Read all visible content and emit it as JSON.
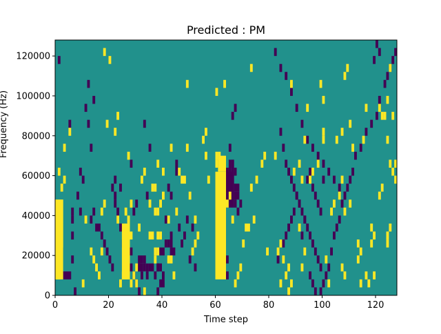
{
  "chart_data": {
    "type": "heatmap",
    "title": "Predicted : PM",
    "xlabel": "Time step",
    "ylabel": "Frequency (Hz)",
    "xlim": [
      0,
      128
    ],
    "ylim": [
      0,
      128000
    ],
    "x_ticks": [
      0,
      20,
      40,
      60,
      80,
      100,
      120
    ],
    "y_ticks": [
      0,
      20000,
      40000,
      60000,
      80000,
      100000,
      120000
    ],
    "x_tick_labels": [
      "0",
      "20",
      "40",
      "60",
      "80",
      "100",
      "120"
    ],
    "y_tick_labels": [
      "0",
      "20000",
      "40000",
      "60000",
      "80000",
      "100000",
      "120000"
    ],
    "grid": false,
    "colormap": "viridis",
    "colors": {
      "background": "#21918c",
      "low": "#440154",
      "high": "#fde725"
    },
    "n_time_steps": 128,
    "n_freq_bins": 32,
    "bin_height_hz": 4000,
    "cells_high": [
      [
        0,
        2
      ],
      [
        1,
        2
      ],
      [
        0,
        11
      ],
      [
        1,
        11
      ],
      [
        2,
        11
      ],
      [
        0,
        10
      ],
      [
        1,
        10
      ],
      [
        2,
        10
      ],
      [
        1,
        8
      ],
      [
        2,
        8
      ],
      [
        1,
        7
      ],
      [
        2,
        7
      ],
      [
        2,
        6
      ],
      [
        1,
        6
      ],
      [
        2,
        9
      ],
      [
        1,
        15
      ],
      [
        2,
        13
      ],
      [
        3,
        14
      ],
      [
        3,
        18
      ],
      [
        5,
        20
      ],
      [
        26,
        2
      ],
      [
        27,
        2
      ],
      [
        26,
        3
      ],
      [
        27,
        3
      ],
      [
        26,
        4
      ],
      [
        27,
        4
      ],
      [
        26,
        5
      ],
      [
        26,
        6
      ],
      [
        26,
        7
      ],
      [
        27,
        6
      ],
      [
        27,
        7
      ],
      [
        28,
        7
      ],
      [
        27,
        8
      ],
      [
        27,
        9
      ],
      [
        28,
        11
      ],
      [
        27,
        17
      ],
      [
        19,
        21
      ],
      [
        20,
        29
      ],
      [
        18,
        30
      ],
      [
        22,
        20
      ],
      [
        23,
        22
      ],
      [
        35,
        7
      ],
      [
        36,
        7
      ],
      [
        37,
        4
      ],
      [
        37,
        5
      ],
      [
        38,
        5
      ],
      [
        38,
        7
      ],
      [
        39,
        7
      ],
      [
        40,
        12
      ],
      [
        38,
        16
      ],
      [
        40,
        15
      ],
      [
        42,
        9
      ],
      [
        43,
        18
      ],
      [
        45,
        10
      ],
      [
        47,
        14
      ],
      [
        49,
        18
      ],
      [
        49,
        26
      ],
      [
        51,
        5
      ],
      [
        52,
        6
      ],
      [
        55,
        19
      ],
      [
        56,
        17
      ],
      [
        57,
        14
      ],
      [
        56,
        20
      ],
      [
        60,
        16
      ],
      [
        60,
        17
      ],
      [
        61,
        17
      ],
      [
        60,
        25
      ],
      [
        63,
        26
      ],
      [
        73,
        28
      ],
      [
        88,
        26
      ],
      [
        94,
        23
      ],
      [
        99,
        26
      ],
      [
        100,
        24
      ],
      [
        105,
        19
      ],
      [
        107,
        20
      ],
      [
        109,
        28
      ],
      [
        111,
        18
      ],
      [
        115,
        19
      ],
      [
        116,
        23
      ],
      [
        124,
        24
      ],
      [
        125,
        28
      ],
      [
        124,
        19
      ],
      [
        125,
        16
      ],
      [
        126,
        22
      ],
      [
        127,
        16
      ],
      [
        100,
        20
      ],
      [
        108,
        27
      ],
      [
        110,
        11
      ],
      [
        116,
        2
      ],
      [
        114,
        1
      ],
      [
        117,
        1
      ],
      [
        113,
        6
      ],
      [
        114,
        5
      ],
      [
        113,
        4
      ],
      [
        119,
        2
      ],
      [
        110,
        21
      ],
      [
        122,
        13
      ],
      [
        121,
        12
      ],
      [
        118,
        8
      ],
      [
        124,
        6
      ],
      [
        124,
        7
      ],
      [
        125,
        8
      ],
      [
        126,
        15
      ],
      [
        127,
        14
      ],
      [
        74,
        9
      ],
      [
        75,
        14
      ],
      [
        77,
        16
      ],
      [
        78,
        17
      ],
      [
        79,
        5
      ],
      [
        83,
        5
      ],
      [
        84,
        6
      ],
      [
        85,
        4
      ],
      [
        87,
        0
      ],
      [
        88,
        1
      ],
      [
        89,
        15
      ],
      [
        91,
        16
      ],
      [
        92,
        14
      ],
      [
        93,
        19
      ],
      [
        95,
        14
      ],
      [
        96,
        15
      ],
      [
        98,
        16
      ],
      [
        100,
        19
      ],
      [
        101,
        4
      ],
      [
        102,
        1
      ],
      [
        103,
        10
      ],
      [
        104,
        11
      ],
      [
        106,
        12
      ],
      [
        107,
        14
      ],
      [
        107,
        3
      ],
      [
        108,
        2
      ],
      [
        108,
        10
      ],
      [
        118,
        6
      ],
      [
        119,
        7
      ],
      [
        121,
        23
      ],
      [
        122,
        22
      ],
      [
        123,
        22
      ],
      [
        30,
        1
      ],
      [
        33,
        0
      ],
      [
        33,
        15
      ],
      [
        35,
        11
      ],
      [
        36,
        13
      ],
      [
        37,
        13
      ],
      [
        37,
        10
      ],
      [
        38,
        10
      ],
      [
        39,
        11
      ],
      [
        42,
        4
      ],
      [
        43,
        4
      ],
      [
        44,
        2
      ],
      [
        46,
        15
      ],
      [
        48,
        14
      ],
      [
        50,
        12
      ],
      [
        52,
        9
      ],
      [
        53,
        7
      ],
      [
        10,
        1
      ],
      [
        11,
        9
      ],
      [
        13,
        5
      ],
      [
        14,
        4
      ],
      [
        15,
        3
      ],
      [
        16,
        2
      ],
      [
        17,
        5
      ],
      [
        17,
        10
      ],
      [
        18,
        11
      ],
      [
        24,
        1
      ],
      [
        25,
        2
      ],
      [
        23,
        9
      ],
      [
        26,
        10
      ],
      [
        28,
        1
      ],
      [
        29,
        2
      ],
      [
        30,
        3
      ],
      [
        31,
        8
      ],
      [
        32,
        14
      ],
      [
        63,
        11
      ],
      [
        64,
        11
      ],
      [
        65,
        12
      ],
      [
        66,
        9
      ],
      [
        67,
        1
      ],
      [
        68,
        2
      ],
      [
        69,
        3
      ],
      [
        70,
        6
      ],
      [
        71,
        8
      ],
      [
        72,
        8
      ],
      [
        73,
        13
      ],
      [
        82,
        17
      ],
      [
        84,
        1
      ],
      [
        86,
        2
      ],
      [
        87,
        3
      ],
      [
        91,
        8
      ],
      [
        92,
        3
      ],
      [
        93,
        5
      ]
    ],
    "cells_low": [
      [
        1,
        29
      ],
      [
        6,
        4
      ],
      [
        6,
        7
      ],
      [
        5,
        21
      ],
      [
        6,
        9
      ],
      [
        6,
        10
      ],
      [
        7,
        0
      ],
      [
        8,
        12
      ],
      [
        9,
        10
      ],
      [
        9,
        15
      ],
      [
        10,
        14
      ],
      [
        11,
        23
      ],
      [
        12,
        26
      ],
      [
        12,
        21
      ],
      [
        13,
        18
      ],
      [
        14,
        24
      ],
      [
        13,
        9
      ],
      [
        14,
        10
      ],
      [
        15,
        8
      ],
      [
        22,
        14
      ],
      [
        22,
        12
      ],
      [
        23,
        10
      ],
      [
        24,
        8
      ],
      [
        24,
        13
      ],
      [
        26,
        6
      ],
      [
        28,
        5
      ],
      [
        28,
        16
      ],
      [
        29,
        10
      ],
      [
        30,
        11
      ],
      [
        31,
        3
      ],
      [
        32,
        2
      ],
      [
        33,
        21
      ],
      [
        34,
        12
      ],
      [
        34,
        2
      ],
      [
        35,
        18
      ],
      [
        36,
        7
      ],
      [
        31,
        3
      ],
      [
        32,
        3
      ],
      [
        31,
        4
      ],
      [
        32,
        4
      ],
      [
        33,
        3
      ],
      [
        33,
        4
      ],
      [
        34,
        3
      ],
      [
        35,
        3
      ],
      [
        36,
        3
      ],
      [
        37,
        2
      ],
      [
        38,
        3
      ],
      [
        39,
        5
      ],
      [
        40,
        5
      ],
      [
        41,
        6
      ],
      [
        42,
        6
      ],
      [
        43,
        7
      ],
      [
        43,
        6
      ],
      [
        43,
        5
      ],
      [
        44,
        5
      ],
      [
        38,
        0
      ],
      [
        39,
        1
      ],
      [
        40,
        1
      ],
      [
        40,
        2
      ],
      [
        39,
        3
      ],
      [
        38,
        3
      ],
      [
        41,
        9
      ],
      [
        42,
        13
      ],
      [
        43,
        12
      ],
      [
        45,
        15
      ],
      [
        45,
        16
      ],
      [
        46,
        8
      ],
      [
        47,
        6
      ],
      [
        48,
        7
      ],
      [
        49,
        9
      ],
      [
        50,
        4
      ],
      [
        51,
        8
      ],
      [
        52,
        3
      ],
      [
        60,
        8
      ],
      [
        61,
        12
      ],
      [
        62,
        10
      ],
      [
        63,
        6
      ],
      [
        64,
        4
      ],
      [
        64,
        2
      ],
      [
        65,
        14
      ],
      [
        66,
        16
      ],
      [
        67,
        15
      ],
      [
        66,
        13
      ],
      [
        67,
        12
      ],
      [
        68,
        10
      ],
      [
        69,
        11
      ],
      [
        68,
        13
      ],
      [
        65,
        18
      ],
      [
        66,
        22
      ],
      [
        67,
        23
      ],
      [
        83,
        4
      ],
      [
        85,
        6
      ],
      [
        86,
        7
      ],
      [
        87,
        8
      ],
      [
        88,
        9
      ],
      [
        89,
        10
      ],
      [
        90,
        12
      ],
      [
        91,
        11
      ],
      [
        93,
        9
      ],
      [
        92,
        7
      ],
      [
        94,
        14
      ],
      [
        95,
        15
      ],
      [
        96,
        13
      ],
      [
        97,
        12
      ],
      [
        98,
        11
      ],
      [
        99,
        10
      ],
      [
        100,
        14
      ],
      [
        95,
        2
      ],
      [
        96,
        1
      ],
      [
        97,
        0
      ],
      [
        99,
        0
      ],
      [
        100,
        1
      ],
      [
        101,
        2
      ],
      [
        102,
        3
      ],
      [
        103,
        5
      ],
      [
        104,
        7
      ],
      [
        105,
        8
      ],
      [
        106,
        9
      ],
      [
        107,
        11
      ],
      [
        108,
        12
      ],
      [
        109,
        13
      ],
      [
        110,
        14
      ],
      [
        111,
        15
      ],
      [
        112,
        17
      ],
      [
        114,
        18
      ],
      [
        116,
        20
      ],
      [
        118,
        21
      ],
      [
        120,
        22
      ],
      [
        121,
        24
      ],
      [
        123,
        26
      ],
      [
        124,
        27
      ],
      [
        125,
        28
      ],
      [
        126,
        29
      ],
      [
        127,
        30
      ],
      [
        120,
        31
      ],
      [
        121,
        30
      ],
      [
        119,
        29
      ],
      [
        82,
        30
      ],
      [
        84,
        28
      ],
      [
        86,
        27
      ],
      [
        88,
        25
      ],
      [
        90,
        23
      ],
      [
        92,
        21
      ],
      [
        94,
        19
      ],
      [
        96,
        18
      ],
      [
        98,
        17
      ],
      [
        100,
        16
      ],
      [
        102,
        15
      ],
      [
        104,
        14
      ],
      [
        106,
        13
      ],
      [
        108,
        12
      ],
      [
        84,
        20
      ],
      [
        85,
        18
      ],
      [
        86,
        16
      ],
      [
        87,
        15
      ],
      [
        88,
        14
      ],
      [
        89,
        13
      ],
      [
        90,
        12
      ],
      [
        91,
        11
      ],
      [
        92,
        10
      ],
      [
        93,
        9
      ],
      [
        94,
        8
      ],
      [
        95,
        7
      ],
      [
        96,
        6
      ],
      [
        97,
        5
      ],
      [
        98,
        4
      ],
      [
        99,
        3
      ],
      [
        21,
        13
      ],
      [
        22,
        11
      ],
      [
        23,
        9
      ],
      [
        24,
        8
      ],
      [
        25,
        6
      ],
      [
        26,
        5
      ],
      [
        27,
        4
      ],
      [
        28,
        3
      ],
      [
        29,
        2
      ],
      [
        30,
        1
      ],
      [
        31,
        0
      ],
      [
        16,
        8
      ],
      [
        17,
        7
      ],
      [
        18,
        6
      ],
      [
        19,
        5
      ],
      [
        20,
        4
      ],
      [
        21,
        3
      ],
      [
        62,
        12
      ],
      [
        63,
        12
      ],
      [
        64,
        12
      ],
      [
        65,
        13
      ],
      [
        66,
        12
      ],
      [
        67,
        11
      ],
      [
        68,
        12
      ],
      [
        64,
        13
      ],
      [
        65,
        14
      ],
      [
        66,
        14
      ],
      [
        64,
        15
      ],
      [
        65,
        15
      ],
      [
        66,
        15
      ],
      [
        65,
        16
      ],
      [
        66,
        16
      ],
      [
        67,
        13
      ]
    ],
    "bars_high": [
      {
        "x": 60,
        "width": 4,
        "y_from": 8000,
        "y_to": 62000
      },
      {
        "x": 61,
        "width": 3,
        "y_from": 62000,
        "y_to": 70000
      },
      {
        "x": 0,
        "width": 3,
        "y_from": 8000,
        "y_to": 48000
      },
      {
        "x": 25,
        "width": 3,
        "y_from": 8000,
        "y_to": 36000
      }
    ],
    "bars_low": [
      {
        "x": 64,
        "width": 3,
        "y_from": 44000,
        "y_to": 62000
      },
      {
        "x": 3,
        "width": 3,
        "y_from": 8000,
        "y_to": 12000
      }
    ]
  }
}
